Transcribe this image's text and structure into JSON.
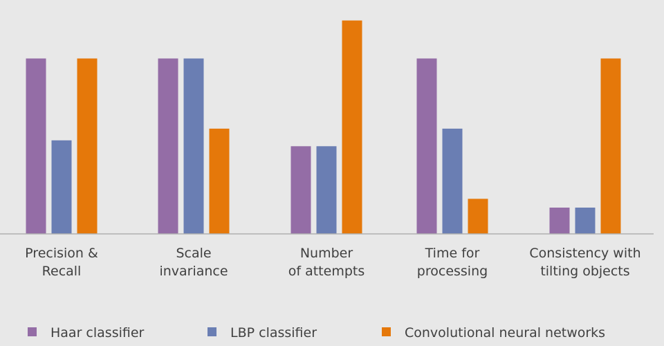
{
  "chart_data": {
    "type": "bar",
    "title": "",
    "xlabel": "",
    "ylabel": "",
    "categories": [
      [
        "Precision &",
        "Recall"
      ],
      [
        "Scale",
        "invariance"
      ],
      [
        "Number",
        "of attempts"
      ],
      [
        "Time for",
        "processing"
      ],
      [
        "Consistency with",
        "tilting objects"
      ]
    ],
    "series": [
      {
        "name": "Haar classifier",
        "color": "#946da6",
        "values": [
          3,
          3,
          1.5,
          3,
          0.45
        ]
      },
      {
        "name": "LBP classifier",
        "color": "#6a7eb3",
        "values": [
          1.6,
          3,
          1.5,
          1.8,
          0.45
        ]
      },
      {
        "name": "Convolutional neural networks",
        "color": "#e5780a",
        "values": [
          3,
          1.8,
          3.65,
          0.6,
          3
        ]
      }
    ],
    "ylim": [
      0,
      4
    ],
    "grid": false,
    "legend_position": "bottom"
  }
}
